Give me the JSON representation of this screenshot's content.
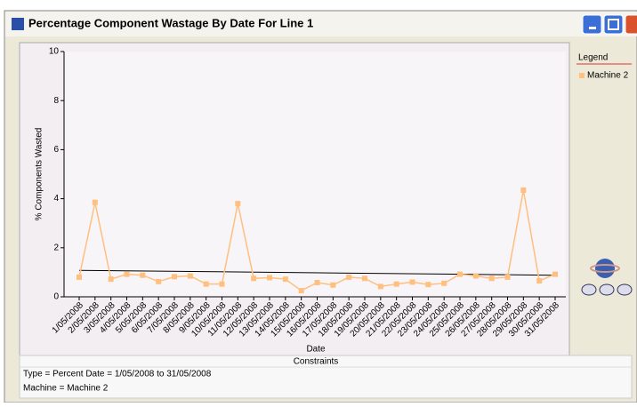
{
  "window": {
    "title": "Percentage Component Wastage By Date For Line 1"
  },
  "chart_data": {
    "type": "line",
    "x_label": "Date",
    "y_label": "% Components Wasted",
    "categories": [
      "1/05/2008",
      "2/05/2008",
      "3/05/2008",
      "4/05/2008",
      "5/05/2008",
      "6/05/2008",
      "7/05/2008",
      "8/05/2008",
      "9/05/2008",
      "10/05/2008",
      "11/05/2008",
      "12/05/2008",
      "13/05/2008",
      "14/05/2008",
      "15/05/2008",
      "16/05/2008",
      "17/05/2008",
      "18/05/2008",
      "19/05/2008",
      "20/05/2008",
      "21/05/2008",
      "22/05/2008",
      "23/05/2008",
      "24/05/2008",
      "25/05/2008",
      "26/05/2008",
      "27/05/2008",
      "28/05/2008",
      "29/05/2008",
      "30/05/2008",
      "31/05/2008"
    ],
    "series": [
      {
        "name": "Machine 2",
        "color": "#ffbf7f",
        "values": [
          0.8,
          3.85,
          0.72,
          0.92,
          0.88,
          0.62,
          0.82,
          0.85,
          0.52,
          0.52,
          3.8,
          0.75,
          0.78,
          0.72,
          0.25,
          0.58,
          0.48,
          0.8,
          0.75,
          0.42,
          0.52,
          0.6,
          0.5,
          0.55,
          0.92,
          0.85,
          0.75,
          0.8,
          4.35,
          0.65,
          0.92
        ]
      }
    ],
    "trendline": {
      "color": "#000000",
      "values": [
        1.08,
        0.88
      ]
    },
    "ylim": [
      0,
      10
    ],
    "yticks": [
      0,
      2,
      4,
      6,
      8,
      10
    ],
    "legend": {
      "title": "Legend",
      "position": "right"
    }
  },
  "constraints": {
    "title": "Constraints",
    "lines": [
      "Type = Percent Date = 1/05/2008 to 31/05/2008",
      "Machine = Machine 2"
    ]
  }
}
